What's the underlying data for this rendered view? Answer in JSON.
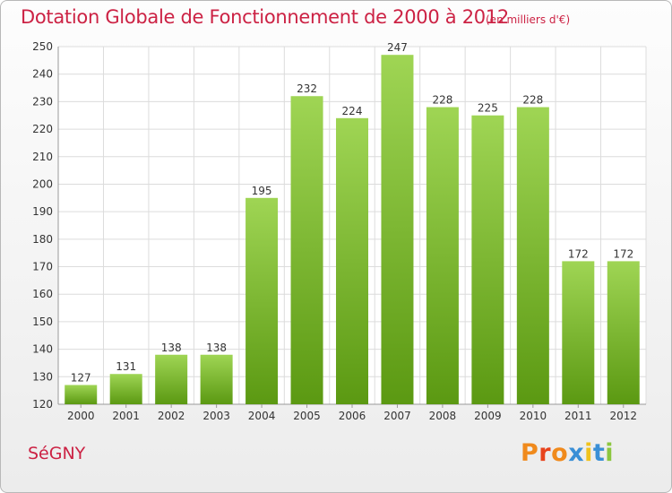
{
  "header": {
    "title": "Dotation Globale de Fonctionnement de 2000 à 2012",
    "unit_note": "(en milliers d'€)"
  },
  "footer": {
    "commune": "SéGNY",
    "logo_text": "Proxiti"
  },
  "colors": {
    "title": "#cc2244",
    "bar_top": "#9fd554",
    "bar_bottom": "#5b9912",
    "grid": "#dcdcdc",
    "logo_letters": [
      "#f08a1c",
      "#e8431c",
      "#f08a1c",
      "#3a8fd6",
      "#f0c21c",
      "#3a8fd6",
      "#8cc63f"
    ]
  },
  "chart_data": {
    "type": "bar",
    "title": "Dotation Globale de Fonctionnement de 2000 à 2012",
    "subtitle": "(en milliers d'€)",
    "xlabel": "",
    "ylabel": "",
    "categories": [
      "2000",
      "2001",
      "2002",
      "2003",
      "2004",
      "2005",
      "2006",
      "2007",
      "2008",
      "2009",
      "2010",
      "2011",
      "2012"
    ],
    "values": [
      127,
      131,
      138,
      138,
      195,
      232,
      224,
      247,
      228,
      225,
      228,
      172,
      172
    ],
    "ylim": [
      120,
      250
    ],
    "yticks": [
      120,
      130,
      140,
      150,
      160,
      170,
      180,
      190,
      200,
      210,
      220,
      230,
      240,
      250
    ],
    "grid": true,
    "legend": "none"
  }
}
